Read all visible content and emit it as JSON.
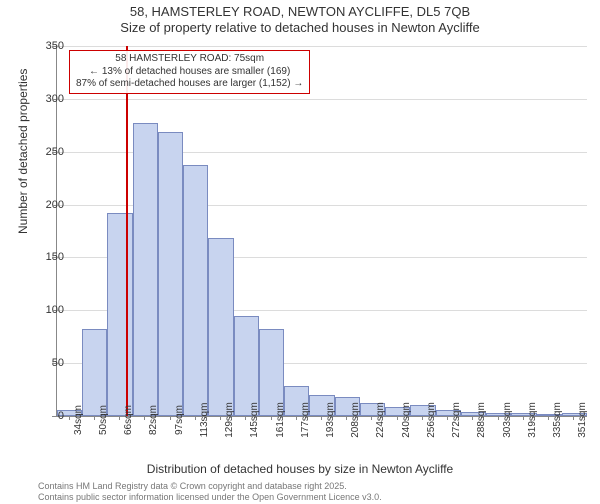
{
  "titles": {
    "main": "58, HAMSTERLEY ROAD, NEWTON AYCLIFFE, DL5 7QB",
    "sub": "Size of property relative to detached houses in Newton Aycliffe"
  },
  "axes": {
    "y_label": "Number of detached properties",
    "x_label": "Distribution of detached houses by size in Newton Aycliffe",
    "ylim": [
      0,
      350
    ],
    "ytick_step": 50,
    "y_tick_labels": [
      "0",
      "50",
      "100",
      "150",
      "200",
      "250",
      "300",
      "350"
    ],
    "x_tick_labels": [
      "34sqm",
      "50sqm",
      "66sqm",
      "82sqm",
      "97sqm",
      "113sqm",
      "129sqm",
      "145sqm",
      "161sqm",
      "177sqm",
      "193sqm",
      "208sqm",
      "224sqm",
      "240sqm",
      "256sqm",
      "272sqm",
      "288sqm",
      "303sqm",
      "319sqm",
      "335sqm",
      "351sqm"
    ],
    "x_tick_step_sqm": 15.85
  },
  "chart": {
    "type": "histogram",
    "bar_fill": "#c8d4ef",
    "bar_stroke": "#6b7db8",
    "grid_color": "#dcdcdc",
    "background_color": "#ffffff",
    "values": [
      6,
      82,
      192,
      277,
      269,
      237,
      168,
      95,
      82,
      28,
      20,
      18,
      12,
      9,
      10,
      6,
      4,
      3,
      3,
      2,
      3
    ],
    "refline": {
      "x_sqm": 75,
      "color": "#cc0000"
    },
    "annotation": {
      "line1": "58 HAMSTERLEY ROAD: 75sqm",
      "line2": "← 13% of detached houses are smaller (169)",
      "line3": "87% of semi-detached houses are larger (1,152) →"
    }
  },
  "footer": {
    "line1": "Contains HM Land Registry data © Crown copyright and database right 2025.",
    "line2": "Contains public sector information licensed under the Open Government Licence v3.0."
  },
  "fonts": {
    "title_fontsize": 13,
    "axis_label_fontsize": 12,
    "tick_fontsize": 11,
    "annot_fontsize": 10,
    "footer_fontsize": 9
  }
}
